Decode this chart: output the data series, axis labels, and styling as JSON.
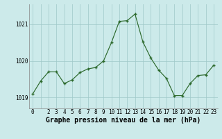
{
  "x": [
    0,
    1,
    2,
    3,
    4,
    5,
    6,
    7,
    8,
    9,
    10,
    11,
    12,
    13,
    14,
    15,
    16,
    17,
    18,
    19,
    20,
    21,
    22,
    23
  ],
  "y": [
    1019.1,
    1019.45,
    1019.7,
    1019.7,
    1019.38,
    1019.48,
    1019.68,
    1019.78,
    1019.82,
    1020.0,
    1020.5,
    1021.08,
    1021.1,
    1021.28,
    1020.52,
    1020.08,
    1019.75,
    1019.52,
    1019.05,
    1019.05,
    1019.38,
    1019.6,
    1019.62,
    1019.88
  ],
  "line_color": "#2d6a2d",
  "marker_color": "#2d6a2d",
  "bg_color": "#cceaea",
  "grid_color": "#9fc8c8",
  "xlabel": "Graphe pression niveau de la mer (hPa)",
  "ylim": [
    1018.7,
    1021.55
  ],
  "yticks": [
    1019,
    1020,
    1021
  ],
  "xtick_labels": [
    "0",
    "",
    "2",
    "3",
    "4",
    "5",
    "6",
    "7",
    "8",
    "9",
    "10",
    "11",
    "12",
    "13",
    "14",
    "15",
    "16",
    "17",
    "18",
    "19",
    "20",
    "21",
    "22",
    "23"
  ],
  "tick_fontsize": 5.5,
  "xlabel_fontsize": 7.0
}
